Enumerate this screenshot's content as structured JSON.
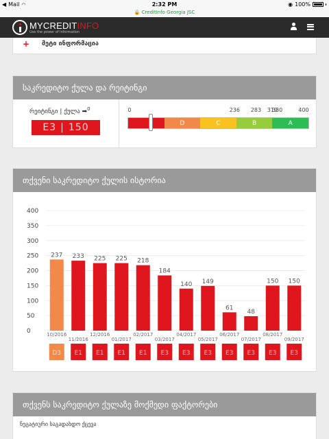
{
  "status_bar": {
    "carrier": "Mail",
    "time": "2:32 PM",
    "battery": "100%"
  },
  "url_bar": {
    "text": "🔒 CreditInfo Georgia JSC"
  },
  "header": {
    "logo_prefix": "MY",
    "logo_credit": "CREDIT",
    "logo_info": "INFO",
    "logo_tagline": "Use the power of information"
  },
  "more_info": {
    "icon": "plus-icon",
    "label": "მეტი ინფორმაცია"
  },
  "score_section": {
    "title": "საკრედიტო ქულა და რეიტინგი",
    "label": "რეიტინგი | ქულა",
    "change": "0",
    "rating": "E3",
    "score": "150",
    "ticks": [
      "0",
      "236",
      "283",
      "319",
      "330",
      "400"
    ],
    "segments": [
      {
        "label": "",
        "color": "#e0161e"
      },
      {
        "label": "D",
        "color": "#f0894a"
      },
      {
        "label": "C",
        "color": "#f8c321"
      },
      {
        "label": "B",
        "color": "#97cc3c"
      },
      {
        "label": "A",
        "color": "#2ebd54"
      }
    ],
    "current_score": 150
  },
  "history_section": {
    "title": "თქვენი საკრედიტო ქულის ისტორია"
  },
  "chart_data": {
    "type": "bar",
    "categories": [
      "10/2016",
      "11/2016",
      "12/2016",
      "01/2017",
      "02/2017",
      "03/2017",
      "04/2017",
      "05/2017",
      "06/2017",
      "07/2017",
      "08/2017",
      "09/2017"
    ],
    "values": [
      237,
      233,
      225,
      225,
      218,
      184,
      140,
      149,
      61,
      48,
      150,
      150
    ],
    "ratings": [
      "D3",
      "E1",
      "E1",
      "E1",
      "E1",
      "E3",
      "E3",
      "E3",
      "E3",
      "E3",
      "E3",
      "E3"
    ],
    "bar_colors": [
      "#f0894a",
      "#e0161e",
      "#e0161e",
      "#e0161e",
      "#e0161e",
      "#e0161e",
      "#e0161e",
      "#e0161e",
      "#e0161e",
      "#e0161e",
      "#e0161e",
      "#e0161e"
    ],
    "ylim": [
      0,
      400
    ],
    "yticks": [
      0,
      50,
      100,
      150,
      200,
      250,
      300,
      350,
      400
    ],
    "grid": true,
    "title": "",
    "xlabel": "",
    "ylabel": ""
  },
  "factors_section": {
    "title": "თქვენს საკრედიტო ქულაზე მოქმედი ფაქტორები",
    "subtitle": "ნეგატიური საგადახდო ქცევა"
  }
}
